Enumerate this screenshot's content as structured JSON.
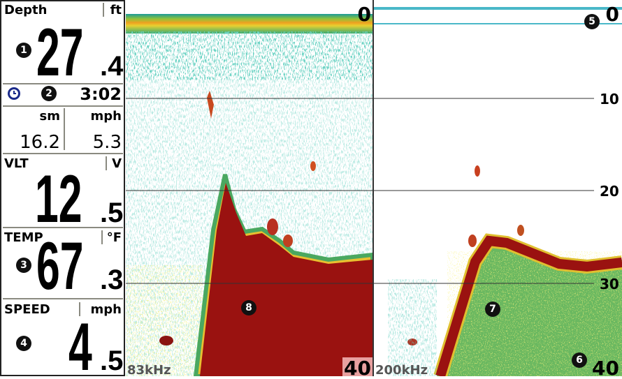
{
  "left_panel": {
    "depth": {
      "label": "Depth",
      "unit": "ft",
      "marker": "1",
      "value": "27",
      "decimal": ".4"
    },
    "time": {
      "marker": "2",
      "value": "3:02"
    },
    "trip": {
      "unit1": "sm",
      "unit2": "mph",
      "value1": "16.2",
      "value2": "5.3"
    },
    "voltage": {
      "label": "VLT",
      "unit": "V",
      "value": "12",
      "decimal": ".5"
    },
    "temp": {
      "label": "TEMP",
      "unit": "°F",
      "marker": "3",
      "value": "67",
      "decimal": ".3"
    },
    "speed": {
      "label": "SPEED",
      "unit": "mph",
      "marker": "4",
      "value": "4",
      "decimal": ".5"
    }
  },
  "sonar": {
    "left": {
      "frequency": "83kHz",
      "top_depth": "0",
      "bottom_depth": "40",
      "marker": "8"
    },
    "right": {
      "frequency": "200kHz",
      "top_depth": "0",
      "bottom_depth": "40",
      "markers": [
        "5",
        "6",
        "7"
      ]
    },
    "depth_scale": [
      "10",
      "20",
      "30"
    ]
  }
}
